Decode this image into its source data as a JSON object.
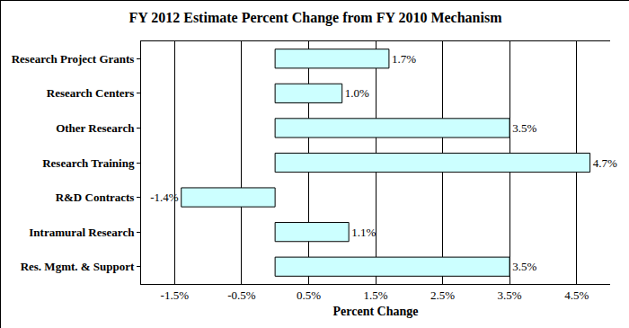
{
  "chart_data": {
    "type": "bar",
    "orientation": "horizontal",
    "title": "FY 2012 Estimate Percent Change from FY 2010 Mechanism",
    "x_label": "Percent Change",
    "categories": [
      "Research Project Grants",
      "Research Centers",
      "Other Research",
      "Research Training",
      "R&D Contracts",
      "Intramural Research",
      "Res. Mgmt. & Support"
    ],
    "values": [
      1.7,
      1.0,
      3.5,
      4.7,
      -1.4,
      1.1,
      3.5
    ],
    "value_labels": [
      "1.7%",
      "1.0%",
      "3.5%",
      "4.7%",
      "-1.4%",
      "1.1%",
      "3.5%"
    ],
    "color": "#ccffff",
    "xlim": [
      -2,
      5
    ],
    "xticks": [
      {
        "value": -1.5,
        "label": "-1.5%"
      },
      {
        "value": -0.5,
        "label": "-0.5%"
      },
      {
        "value": 0.5,
        "label": "0.5%"
      },
      {
        "value": 1.5,
        "label": "1.5%"
      },
      {
        "value": 2.5,
        "label": "2.5%"
      },
      {
        "value": 3.5,
        "label": "3.5%"
      },
      {
        "value": 4.5,
        "label": "4.5%"
      }
    ],
    "grid": true,
    "data_labels": true
  }
}
